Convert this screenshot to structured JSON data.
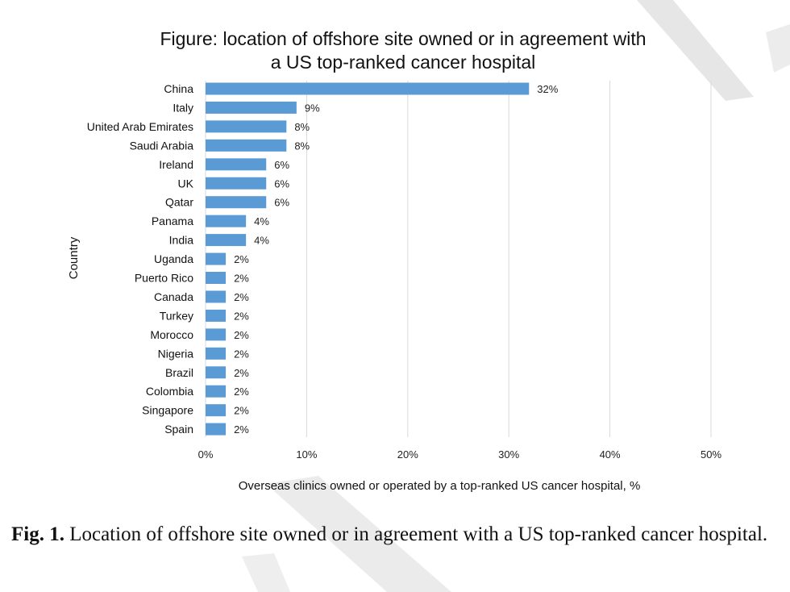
{
  "chart_data": {
    "type": "bar",
    "orientation": "horizontal",
    "title": "Figure: location of offshore site owned or in agreement with a US top-ranked cancer hospital",
    "title_lines": [
      "Figure: location of offshore site owned or in agreement with",
      "a US top-ranked cancer hospital"
    ],
    "xlabel": "Overseas clinics owned or operated by a top-ranked US cancer hospital, %",
    "ylabel": "Country",
    "xlim": [
      0,
      50
    ],
    "xticks": [
      "0%",
      "10%",
      "20%",
      "30%",
      "40%",
      "50%"
    ],
    "grid": true,
    "bar_color": "#5b9bd5",
    "categories": [
      "China",
      "Italy",
      "United Arab Emirates",
      "Saudi Arabia",
      "Ireland",
      "UK",
      "Qatar",
      "Panama",
      "India",
      "Uganda",
      "Puerto Rico",
      "Canada",
      "Turkey",
      "Morocco",
      "Nigeria",
      "Brazil",
      "Colombia",
      "Singapore",
      "Spain"
    ],
    "values": [
      32,
      9,
      8,
      8,
      6,
      6,
      6,
      4,
      4,
      2,
      2,
      2,
      2,
      2,
      2,
      2,
      2,
      2,
      2
    ],
    "value_labels": [
      "32%",
      "9%",
      "8%",
      "8%",
      "6%",
      "6%",
      "6%",
      "4%",
      "4%",
      "2%",
      "2%",
      "2%",
      "2%",
      "2%",
      "2%",
      "2%",
      "2%",
      "2%",
      "2%"
    ]
  },
  "caption": {
    "label": "Fig. 1.",
    "text": "Location of offshore site owned or in agreement with a US top-ranked cancer hospital."
  }
}
